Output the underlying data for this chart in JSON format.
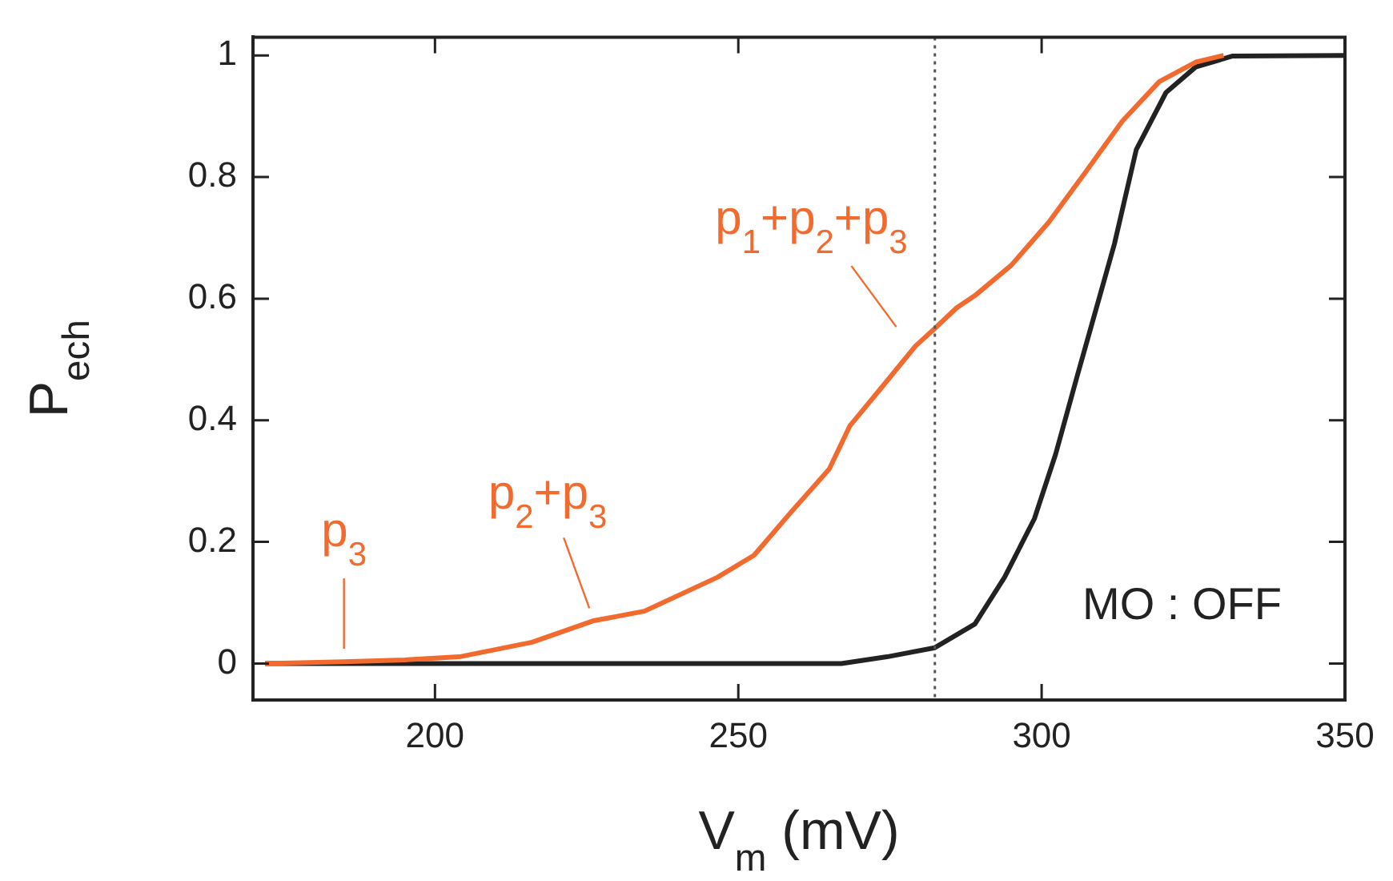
{
  "chart_data": {
    "type": "line",
    "xlabel": "V$_{m}$ (mV)",
    "ylabel": "P$_{ech}$",
    "xlim": [
      170,
      350
    ],
    "xticks": [
      200,
      250,
      300,
      350
    ],
    "ylim": [
      -0.06,
      1.03
    ],
    "yticks": [
      0,
      0.2,
      0.4,
      0.6,
      0.8,
      1
    ],
    "grid": false,
    "legend": false,
    "marker": "none",
    "line_style": "solid",
    "series": [
      {
        "color": "#f26a2e",
        "x": [
          172,
          185,
          195,
          204,
          216,
          226,
          234.5,
          246.6,
          252.6,
          258.7,
          265,
          268.4,
          273.3,
          279.2,
          282.4,
          286,
          289,
          295,
          301.2,
          307.3,
          313.3,
          319.4,
          325.4,
          330
        ],
        "values": [
          0,
          0.003,
          0.006,
          0.011,
          0.035,
          0.07,
          0.086,
          0.142,
          0.178,
          0.249,
          0.32,
          0.391,
          0.45,
          0.522,
          0.551,
          0.585,
          0.605,
          0.655,
          0.726,
          0.809,
          0.892,
          0.957,
          0.989,
          1
        ]
      },
      {
        "name": "MO : OFF",
        "color": "#222222",
        "x": [
          172,
          200,
          250,
          267,
          274.5,
          282.4,
          289,
          293.9,
          298.8,
          302.3,
          305.9,
          309.6,
          312,
          315.6,
          320.5,
          325.4,
          331.5,
          350
        ],
        "values": [
          0,
          0,
          0,
          0,
          0.011,
          0.026,
          0.065,
          0.142,
          0.238,
          0.344,
          0.474,
          0.605,
          0.69,
          0.845,
          0.939,
          0.981,
          0.999,
          1
        ]
      }
    ],
    "ref_lines": [
      {
        "axis": "x",
        "value": 282.4,
        "color": "#555555",
        "line_style": "dotted"
      }
    ],
    "annotations": [
      {
        "text": "p$_{3}$",
        "x": 185,
        "y": 0.003
      },
      {
        "text": "p$_{2}$+p$_{3}$",
        "x": 226.5,
        "y": 0.07
      },
      {
        "text": "p$_{1}$+p$_{2}$+p$_{3}$",
        "x": 279.2,
        "y": 0.522
      }
    ]
  }
}
